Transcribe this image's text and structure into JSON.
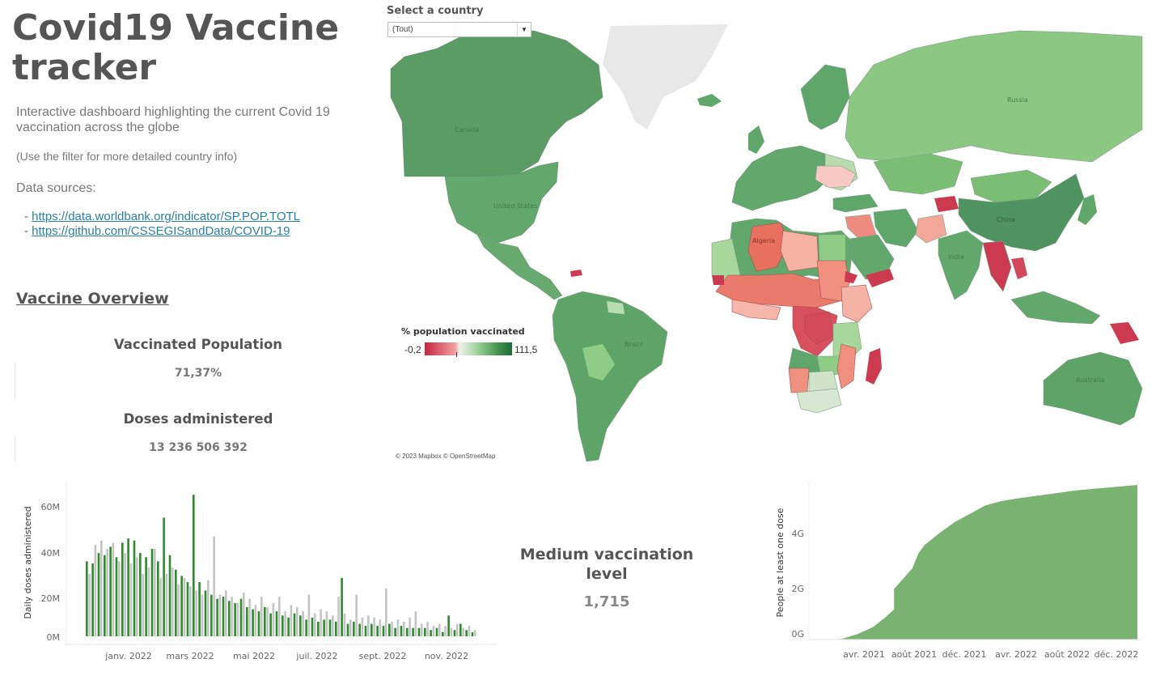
{
  "header": {
    "title": "Covid19 Vaccine tracker",
    "subtitle": "Interactive dashboard highlighting the current Covid 19 vaccination across the globe",
    "filter_note": "(Use the filter for more detailed country info)",
    "sources_label": "Data sources:",
    "sources": [
      {
        "prefix": "- ",
        "url": "https://data.worldbank.org/indicator/SP.POP.TOTL"
      },
      {
        "prefix": "- ",
        "url": "https://github.com/CSSEGISandData/COVID-19"
      }
    ]
  },
  "overview": {
    "heading": "Vaccine Overview",
    "kpis": [
      {
        "label": "Vaccinated Population",
        "value": "71,37%"
      },
      {
        "label": "Doses administered",
        "value": "13 236 506 392"
      }
    ]
  },
  "filter": {
    "label": "Select a country",
    "selected": "(Tout)"
  },
  "map": {
    "legend_title": "% population vaccinated",
    "legend_min": "-0,2",
    "legend_max": "111,5",
    "credit": "© 2023 Mapbox © OpenStreetMap",
    "colors": {
      "low": "#c8243f",
      "mid": "#eef2ea",
      "high": "#1f6b3a",
      "land_default": "#5e9e66",
      "ocean": "#ffffff",
      "no_data": "#e8e8e8"
    },
    "labels": [
      "Canada",
      "United States",
      "Brazil",
      "Algeria",
      "Russia",
      "China",
      "India",
      "Australia"
    ]
  },
  "medium": {
    "label": "Medium vaccination level",
    "value": "1,715"
  },
  "chart_data": [
    {
      "type": "bar",
      "ylabel": "Daily doses administered",
      "ylim": [
        0,
        70
      ],
      "y_ticks": [
        "0M",
        "20M",
        "40M",
        "60M"
      ],
      "x_ticks": [
        "janv. 2022",
        "mars 2022",
        "mai 2022",
        "juil. 2022",
        "sept. 2022",
        "nov. 2022"
      ],
      "series_colors": {
        "green": "#2e8b2e",
        "grey": "#c4c4c4"
      },
      "values_green": [
        36,
        35,
        40,
        39,
        43,
        38,
        45,
        47,
        46,
        40,
        38,
        42,
        36,
        57,
        39,
        32,
        29,
        26,
        68,
        26,
        22,
        20,
        18,
        19,
        17,
        16,
        18,
        14,
        13,
        12,
        14,
        11,
        12,
        10,
        9,
        11,
        10,
        8,
        9,
        7,
        8,
        8,
        7,
        28,
        6,
        7,
        6,
        5,
        6,
        5,
        5,
        6,
        4,
        5,
        4,
        4,
        4,
        4,
        3,
        4,
        2,
        10,
        3,
        6,
        3,
        2
      ],
      "values_grey": [
        30,
        44,
        46,
        42,
        45,
        36,
        40,
        35,
        38,
        30,
        33,
        42,
        28,
        30,
        33,
        25,
        28,
        24,
        22,
        20,
        27,
        48,
        20,
        22,
        19,
        16,
        21,
        18,
        15,
        19,
        14,
        16,
        19,
        12,
        15,
        14,
        12,
        20,
        11,
        13,
        12,
        10,
        19,
        11,
        8,
        20,
        9,
        10,
        9,
        8,
        23,
        7,
        8,
        7,
        9,
        12,
        6,
        7,
        5,
        6,
        5,
        4,
        6,
        4,
        5,
        3
      ]
    },
    {
      "type": "area",
      "ylabel": "People at least one dose",
      "y_ticks": [
        "0G",
        "2G",
        "4G"
      ],
      "x_ticks": [
        "avr. 2021",
        "août 2021",
        "déc. 2021",
        "avr. 2022",
        "août 2022",
        "déc. 2022"
      ],
      "ylim": [
        0,
        5.8
      ],
      "color": "#7ab371",
      "x": [
        0,
        0.03,
        0.08,
        0.13,
        0.17,
        0.2,
        0.2,
        0.26,
        0.28,
        0.3,
        0.35,
        0.4,
        0.45,
        0.5,
        0.55,
        0.6,
        0.7,
        0.8,
        0.9,
        1.0
      ],
      "y": [
        0.0,
        0.03,
        0.2,
        0.45,
        0.8,
        1.1,
        1.85,
        2.6,
        3.15,
        3.45,
        3.9,
        4.3,
        4.6,
        4.9,
        5.05,
        5.15,
        5.3,
        5.45,
        5.55,
        5.65
      ]
    }
  ]
}
